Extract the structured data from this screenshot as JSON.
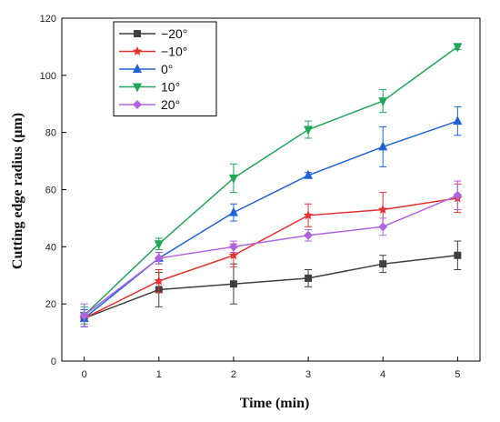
{
  "chart_data": {
    "type": "line",
    "xlabel": "Time (min)",
    "ylabel": "Cutting edge radius (μm)",
    "x": [
      0,
      1,
      2,
      3,
      4,
      5
    ],
    "xlim": [
      -0.3,
      5.3
    ],
    "ylim": [
      0,
      120
    ],
    "xticks": [
      0,
      1,
      2,
      3,
      4,
      5
    ],
    "yticks": [
      0,
      20,
      40,
      60,
      80,
      100,
      120
    ],
    "grid": false,
    "legend_position": "top-left",
    "series": [
      {
        "name": "−20°",
        "color": "#3f3f3f",
        "marker": "square",
        "values": [
          15,
          25,
          27,
          29,
          34,
          37
        ],
        "errors": [
          3,
          6,
          7,
          3,
          3,
          5
        ]
      },
      {
        "name": "−10°",
        "color": "#e8312f",
        "marker": "star",
        "values": [
          15,
          28,
          37,
          51,
          53,
          57
        ],
        "errors": [
          3,
          4,
          4,
          4,
          6,
          5
        ]
      },
      {
        "name": "0°",
        "color": "#1f63d6",
        "marker": "triangle-up",
        "values": [
          15,
          36,
          52,
          65,
          75,
          84
        ],
        "errors": [
          3,
          2,
          3,
          1,
          7,
          5
        ]
      },
      {
        "name": "10°",
        "color": "#21a65a",
        "marker": "triangle-down",
        "values": [
          16,
          41,
          64,
          81,
          91,
          110
        ],
        "errors": [
          3,
          2,
          5,
          3,
          4,
          1
        ]
      },
      {
        "name": "20°",
        "color": "#b065e0",
        "marker": "diamond",
        "values": [
          16,
          36,
          40,
          44,
          47,
          58
        ],
        "errors": [
          4,
          2,
          2,
          2,
          3,
          5
        ]
      }
    ]
  }
}
